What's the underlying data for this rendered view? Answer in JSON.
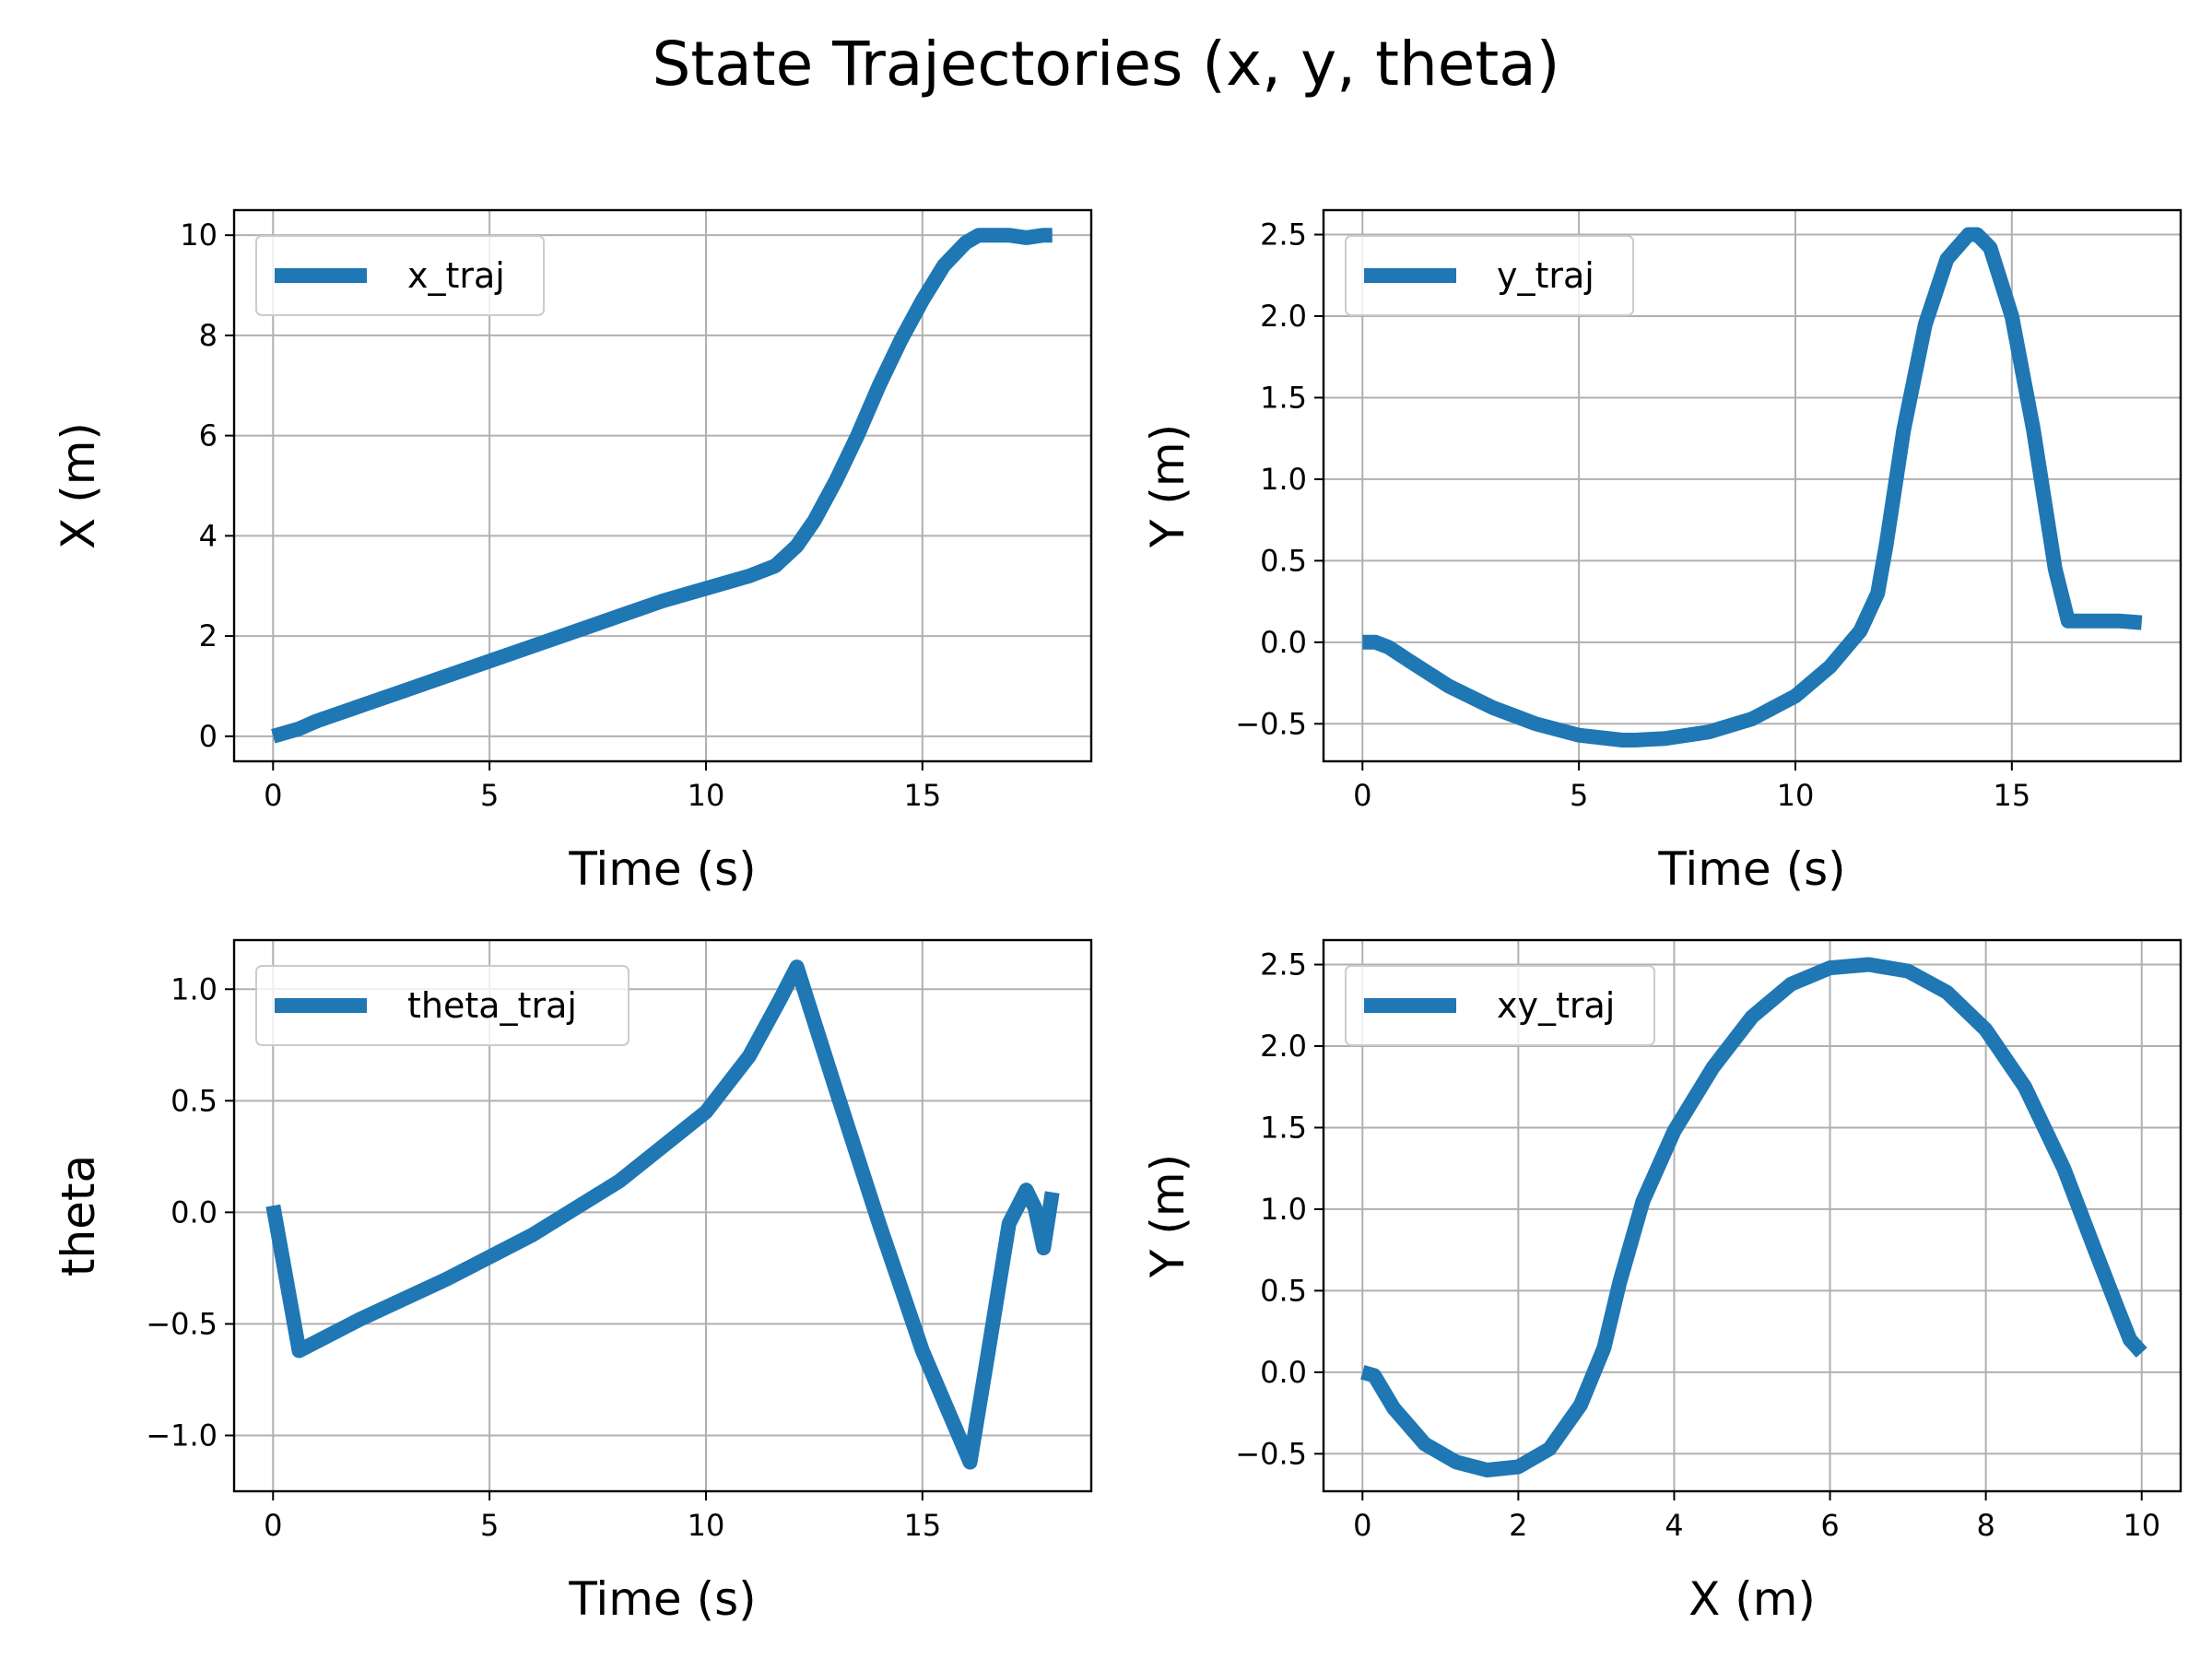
{
  "figure": {
    "title": "State Trajectories (x, y, theta)",
    "series_color": "#1f77b4",
    "background": "#ffffff"
  },
  "chart_data": [
    {
      "type": "line",
      "xlabel": "Time (s)",
      "ylabel": "X (m)",
      "xlim": [
        -0.9,
        18.9
      ],
      "ylim": [
        -0.5,
        10.5
      ],
      "xticks": [
        0,
        5,
        10,
        15
      ],
      "yticks": [
        0,
        2,
        4,
        6,
        8,
        10
      ],
      "xtick_labels": [
        "0",
        "5",
        "10",
        "15"
      ],
      "ytick_labels": [
        "0",
        "2",
        "4",
        "6",
        "8",
        "10"
      ],
      "grid": true,
      "legend": "upper-left",
      "series": [
        {
          "name": "x_traj",
          "x": [
            0,
            0.6,
            1,
            2,
            3,
            4,
            5,
            6,
            7,
            8,
            9,
            10,
            11,
            11.6,
            12.1,
            12.5,
            13,
            13.5,
            14,
            14.5,
            15,
            15.5,
            16,
            16.3,
            16.6,
            17,
            17.4,
            17.8,
            18
          ],
          "y": [
            0,
            0.15,
            0.3,
            0.6,
            0.9,
            1.2,
            1.5,
            1.8,
            2.1,
            2.4,
            2.7,
            2.95,
            3.2,
            3.4,
            3.8,
            4.3,
            5.1,
            6.0,
            7.0,
            7.9,
            8.7,
            9.4,
            9.85,
            10.0,
            10.0,
            10.0,
            9.95,
            10.0,
            10.0
          ]
        }
      ]
    },
    {
      "type": "line",
      "xlabel": "Time (s)",
      "ylabel": "Y (m)",
      "xlim": [
        -0.9,
        18.9
      ],
      "ylim": [
        -0.73,
        2.65
      ],
      "xticks": [
        0,
        5,
        10,
        15
      ],
      "yticks": [
        -0.5,
        0,
        0.5,
        1.0,
        1.5,
        2.0,
        2.5
      ],
      "xtick_labels": [
        "0",
        "5",
        "10",
        "15"
      ],
      "ytick_labels": [
        "−0.5",
        "0.0",
        "0.5",
        "1.0",
        "1.5",
        "2.0",
        "2.5"
      ],
      "grid": true,
      "legend": "upper-left",
      "series": [
        {
          "name": "y_traj",
          "x": [
            0,
            0.3,
            0.6,
            1,
            2,
            3,
            4,
            5,
            6,
            6.3,
            7,
            8,
            9,
            10,
            10.8,
            11.5,
            11.9,
            12.1,
            12.5,
            13,
            13.5,
            14,
            14.2,
            14.5,
            15,
            15.5,
            16,
            16.3,
            16.6,
            17,
            17.5,
            18
          ],
          "y": [
            0,
            0,
            -0.03,
            -0.1,
            -0.27,
            -0.4,
            -0.5,
            -0.57,
            -0.6,
            -0.6,
            -0.59,
            -0.55,
            -0.47,
            -0.33,
            -0.15,
            0.07,
            0.3,
            0.6,
            1.3,
            1.95,
            2.35,
            2.5,
            2.5,
            2.42,
            2.0,
            1.3,
            0.45,
            0.13,
            0.13,
            0.13,
            0.13,
            0.12
          ]
        }
      ]
    },
    {
      "type": "line",
      "xlabel": "Time (s)",
      "ylabel": "theta",
      "xlim": [
        -0.9,
        18.9
      ],
      "ylim": [
        -1.25,
        1.22
      ],
      "xticks": [
        0,
        5,
        10,
        15
      ],
      "yticks": [
        -1.0,
        -0.5,
        0,
        0.5,
        1.0
      ],
      "xtick_labels": [
        "0",
        "5",
        "10",
        "15"
      ],
      "ytick_labels": [
        "−1.0",
        "−0.5",
        "0.0",
        "0.5",
        "1.0"
      ],
      "grid": true,
      "legend": "upper-left",
      "series": [
        {
          "name": "theta_traj",
          "x": [
            0,
            0.6,
            2,
            4,
            6,
            8,
            10,
            11,
            11.7,
            12.1,
            13,
            14,
            15,
            16.1,
            16.5,
            17,
            17.4,
            17.6,
            17.8,
            18
          ],
          "y": [
            0.03,
            -0.62,
            -0.48,
            -0.3,
            -0.1,
            0.14,
            0.45,
            0.7,
            0.95,
            1.1,
            0.55,
            -0.05,
            -0.62,
            -1.12,
            -0.65,
            -0.05,
            0.1,
            0.02,
            -0.16,
            0.09
          ]
        }
      ]
    },
    {
      "type": "line",
      "xlabel": "X (m)",
      "ylabel": "Y (m)",
      "xlim": [
        -0.5,
        10.5
      ],
      "ylim": [
        -0.73,
        2.65
      ],
      "xticks": [
        0,
        2,
        4,
        6,
        8,
        10
      ],
      "yticks": [
        -0.5,
        0,
        0.5,
        1.0,
        1.5,
        2.0,
        2.5
      ],
      "xtick_labels": [
        "0",
        "2",
        "4",
        "6",
        "8",
        "10"
      ],
      "ytick_labels": [
        "−0.5",
        "0.0",
        "0.5",
        "1.0",
        "1.5",
        "2.0",
        "2.5"
      ],
      "grid": true,
      "legend": "upper-left",
      "series": [
        {
          "name": "xy_traj",
          "x": [
            0,
            0.15,
            0.4,
            0.8,
            1.2,
            1.6,
            2.0,
            2.4,
            2.8,
            3.1,
            3.3,
            3.6,
            4.0,
            4.5,
            5.0,
            5.5,
            6.0,
            6.5,
            7.0,
            7.5,
            8.0,
            8.5,
            9.0,
            9.4,
            9.7,
            9.85,
            10.0
          ],
          "y": [
            0,
            -0.02,
            -0.22,
            -0.44,
            -0.55,
            -0.6,
            -0.58,
            -0.47,
            -0.2,
            0.15,
            0.55,
            1.05,
            1.48,
            1.87,
            2.18,
            2.38,
            2.48,
            2.5,
            2.46,
            2.33,
            2.1,
            1.75,
            1.25,
            0.75,
            0.38,
            0.2,
            0.12
          ]
        }
      ]
    }
  ]
}
